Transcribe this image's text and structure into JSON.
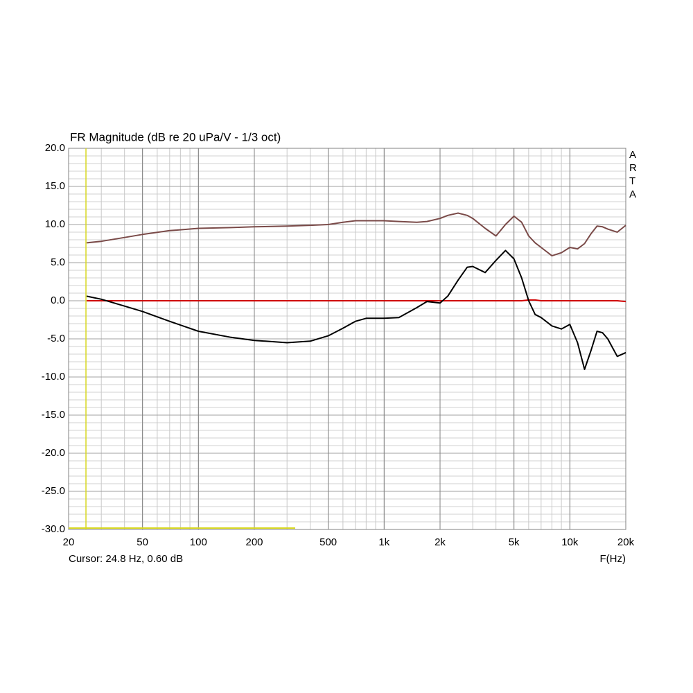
{
  "chart_data": {
    "type": "line",
    "title": "FR Magnitude (dB re 20 uPa/V - 1/3 oct)",
    "x_label": "F(Hz)",
    "watermark": "ARTA",
    "cursor": {
      "label": "Cursor: 24.8 Hz, 0.60 dB",
      "x": 24.8,
      "color": "#d8d820"
    },
    "x_scale": "log",
    "grid": true,
    "xlim": [
      20,
      20000
    ],
    "ylim": [
      -30,
      20
    ],
    "xticks": [
      20,
      50,
      100,
      200,
      500,
      {
        "value": 1000,
        "label": "1k"
      },
      {
        "value": 2000,
        "label": "2k"
      },
      {
        "value": 5000,
        "label": "5k"
      },
      {
        "value": 10000,
        "label": "10k"
      },
      {
        "value": 20000,
        "label": "20k"
      }
    ],
    "yticks": [
      {
        "value": 20,
        "label": "20.0"
      },
      {
        "value": 15,
        "label": "15.0"
      },
      {
        "value": 10,
        "label": "10.0"
      },
      {
        "value": 5,
        "label": "5.0"
      },
      {
        "value": 0,
        "label": "0.0"
      },
      {
        "value": -5,
        "label": "-5.0"
      },
      {
        "value": -10,
        "label": "-10.0"
      },
      {
        "value": -15,
        "label": "-15.0"
      },
      {
        "value": -20,
        "label": "-20.0"
      },
      {
        "value": -25,
        "label": "-25.0"
      },
      {
        "value": -30,
        "label": "-30.0"
      }
    ],
    "x": [
      25,
      30,
      40,
      50,
      70,
      100,
      150,
      200,
      300,
      400,
      500,
      600,
      700,
      800,
      1000,
      1200,
      1500,
      1700,
      2000,
      2200,
      2500,
      2800,
      3000,
      3500,
      4000,
      4500,
      5000,
      5500,
      6000,
      6500,
      7000,
      8000,
      9000,
      10000,
      11000,
      12000,
      13000,
      14000,
      15000,
      16000,
      18000,
      20000
    ],
    "series": [
      {
        "color": "#7a4a48",
        "values": [
          7.6,
          7.8,
          8.3,
          8.7,
          9.2,
          9.5,
          9.6,
          9.7,
          9.8,
          9.9,
          10.0,
          10.3,
          10.5,
          10.5,
          10.5,
          10.4,
          10.3,
          10.4,
          10.8,
          11.2,
          11.5,
          11.2,
          10.8,
          9.5,
          8.5,
          10.0,
          11.1,
          10.3,
          8.5,
          7.6,
          7.0,
          5.9,
          6.3,
          7.0,
          6.8,
          7.5,
          8.8,
          9.8,
          9.7,
          9.4,
          9.0,
          9.9
        ]
      },
      {
        "color": "#d00000",
        "values": [
          0,
          0,
          0,
          0,
          0,
          0,
          0,
          0,
          0,
          0,
          0,
          0,
          0,
          0,
          0,
          0,
          0,
          0,
          0,
          0,
          0,
          0,
          0,
          0,
          0,
          0,
          0,
          0,
          0.1,
          0.1,
          0,
          0,
          0,
          0,
          0,
          0,
          0,
          0,
          0,
          0,
          0,
          -0.1
        ]
      },
      {
        "color": "#000000",
        "values": [
          0.6,
          0.2,
          -0.7,
          -1.4,
          -2.7,
          -4.0,
          -4.8,
          -5.2,
          -5.5,
          -5.3,
          -4.6,
          -3.6,
          -2.7,
          -2.3,
          -2.3,
          -2.2,
          -0.9,
          -0.1,
          -0.3,
          0.6,
          2.7,
          4.4,
          4.5,
          3.7,
          5.3,
          6.6,
          5.5,
          3.0,
          0.0,
          -1.8,
          -2.2,
          -3.3,
          -3.7,
          -3.1,
          -5.5,
          -9.0,
          -6.5,
          -4.0,
          -4.2,
          -5.0,
          -7.3,
          -6.8
        ]
      }
    ]
  }
}
